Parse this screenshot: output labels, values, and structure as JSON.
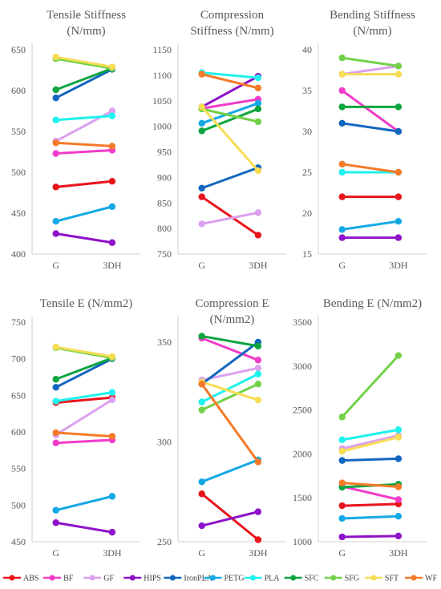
{
  "series_colors": {
    "ABS": "#e8141c",
    "BF": "#f03cc8",
    "GF": "#dca0ef",
    "HIPS": "#8e12c9",
    "IronPLA": "#1266bf",
    "PETG": "#14a9e6",
    "PLA": "#1ef2ee",
    "SFC": "#0ea540",
    "SFG": "#72d148",
    "SFT": "#f7dc54",
    "WF": "#f47a28"
  },
  "legend": [
    "ABS",
    "BF",
    "GF",
    "HIPS",
    "IronPLA",
    "PETG",
    "PLA",
    "SFC",
    "SFG",
    "SFT",
    "WF"
  ],
  "chart_data": [
    {
      "type": "line",
      "title": [
        "Tensile Stiffness",
        "(N/mm)"
      ],
      "categories": [
        "G",
        "3DH"
      ],
      "ylim": [
        400,
        650
      ],
      "yticks": [
        "400",
        "450",
        "500",
        "550",
        "600",
        "650"
      ],
      "grid": false,
      "series": [
        {
          "name": "ABS",
          "values": [
            482,
            489
          ]
        },
        {
          "name": "BF",
          "values": [
            523,
            527
          ]
        },
        {
          "name": "GF",
          "values": [
            538,
            575
          ]
        },
        {
          "name": "HIPS",
          "values": [
            425,
            414
          ]
        },
        {
          "name": "IronPLA",
          "values": [
            591,
            626
          ]
        },
        {
          "name": "PETG",
          "values": [
            440,
            458
          ]
        },
        {
          "name": "PLA",
          "values": [
            564,
            569
          ]
        },
        {
          "name": "SFC",
          "values": [
            601,
            627
          ]
        },
        {
          "name": "SFG",
          "values": [
            639,
            627
          ]
        },
        {
          "name": "SFT",
          "values": [
            641,
            629
          ]
        },
        {
          "name": "WF",
          "values": [
            536,
            532
          ]
        }
      ]
    },
    {
      "type": "line",
      "title": [
        "Compression",
        "Stiffness (N/mm)"
      ],
      "categories": [
        "G",
        "3DH"
      ],
      "ylim": [
        750,
        1150
      ],
      "yticks": [
        "750",
        "800",
        "850",
        "900",
        "950",
        "1000",
        "1050",
        "1100",
        "1150"
      ],
      "grid": false,
      "series": [
        {
          "name": "ABS",
          "values": [
            862,
            787
          ]
        },
        {
          "name": "BF",
          "values": [
            1035,
            1053
          ]
        },
        {
          "name": "GF",
          "values": [
            809,
            831
          ]
        },
        {
          "name": "HIPS",
          "values": [
            1038,
            1098
          ]
        },
        {
          "name": "IronPLA",
          "values": [
            879,
            919
          ]
        },
        {
          "name": "PETG",
          "values": [
            1006,
            1045
          ]
        },
        {
          "name": "PLA",
          "values": [
            1105,
            1095
          ]
        },
        {
          "name": "SFC",
          "values": [
            991,
            1034
          ]
        },
        {
          "name": "SFG",
          "values": [
            1034,
            1009
          ]
        },
        {
          "name": "SFT",
          "values": [
            1038,
            913
          ]
        },
        {
          "name": "WF",
          "values": [
            1102,
            1075
          ]
        }
      ]
    },
    {
      "type": "line",
      "title": [
        "Bending Stiffness",
        "(N/mm)"
      ],
      "categories": [
        "G",
        "3DH"
      ],
      "ylim": [
        15,
        40
      ],
      "yticks": [
        "15",
        "20",
        "25",
        "30",
        "35",
        "40"
      ],
      "grid": false,
      "series": [
        {
          "name": "ABS",
          "values": [
            22,
            22
          ]
        },
        {
          "name": "BF",
          "values": [
            35,
            30
          ]
        },
        {
          "name": "GF",
          "values": [
            37,
            38
          ]
        },
        {
          "name": "HIPS",
          "values": [
            17,
            17
          ]
        },
        {
          "name": "IronPLA",
          "values": [
            31,
            30
          ]
        },
        {
          "name": "PETG",
          "values": [
            18,
            19
          ]
        },
        {
          "name": "PLA",
          "values": [
            25,
            25
          ]
        },
        {
          "name": "SFC",
          "values": [
            33,
            33
          ]
        },
        {
          "name": "SFG",
          "values": [
            39,
            38
          ]
        },
        {
          "name": "SFT",
          "values": [
            37,
            37
          ]
        },
        {
          "name": "WF",
          "values": [
            26,
            25
          ]
        }
      ]
    },
    {
      "type": "line",
      "title": [
        "Tensile E (N/mm2)"
      ],
      "categories": [
        "G",
        "3DH"
      ],
      "ylim": [
        450,
        750
      ],
      "yticks": [
        "450",
        "500",
        "550",
        "600",
        "650",
        "700",
        "750"
      ],
      "grid": false,
      "series": [
        {
          "name": "ABS",
          "values": [
            640,
            647
          ]
        },
        {
          "name": "BF",
          "values": [
            585,
            589
          ]
        },
        {
          "name": "GF",
          "values": [
            596,
            644
          ]
        },
        {
          "name": "HIPS",
          "values": [
            476,
            463
          ]
        },
        {
          "name": "IronPLA",
          "values": [
            661,
            700
          ]
        },
        {
          "name": "PETG",
          "values": [
            493,
            512
          ]
        },
        {
          "name": "PLA",
          "values": [
            642,
            654
          ]
        },
        {
          "name": "SFC",
          "values": [
            672,
            701
          ]
        },
        {
          "name": "SFG",
          "values": [
            715,
            701
          ]
        },
        {
          "name": "SFT",
          "values": [
            716,
            703
          ]
        },
        {
          "name": "WF",
          "values": [
            599,
            594
          ]
        }
      ]
    },
    {
      "type": "line",
      "title": [
        "Compression E",
        "(N/mm2)"
      ],
      "categories": [
        "G",
        "3DH"
      ],
      "ylim": [
        250,
        360
      ],
      "yticks": [
        "250",
        "300",
        "350"
      ],
      "grid": false,
      "series": [
        {
          "name": "ABS",
          "values": [
            274,
            251
          ]
        },
        {
          "name": "BF",
          "values": [
            352,
            341
          ]
        },
        {
          "name": "GF",
          "values": [
            331,
            337
          ]
        },
        {
          "name": "HIPS",
          "values": [
            258,
            265
          ]
        },
        {
          "name": "IronPLA",
          "values": [
            329,
            350
          ]
        },
        {
          "name": "PETG",
          "values": [
            280,
            291
          ]
        },
        {
          "name": "PLA",
          "values": [
            320,
            334
          ]
        },
        {
          "name": "SFC",
          "values": [
            353,
            348
          ]
        },
        {
          "name": "SFG",
          "values": [
            316,
            329
          ]
        },
        {
          "name": "SFT",
          "values": [
            330,
            321
          ]
        },
        {
          "name": "WF",
          "values": [
            329,
            290
          ]
        }
      ]
    },
    {
      "type": "line",
      "title": [
        "Bending E (N/mm2)"
      ],
      "categories": [
        "G",
        "3DH"
      ],
      "ylim": [
        1000,
        3500
      ],
      "yticks": [
        "1000",
        "1500",
        "2000",
        "2500",
        "3000",
        "3500"
      ],
      "grid": false,
      "series": [
        {
          "name": "ABS",
          "values": [
            1410,
            1430
          ]
        },
        {
          "name": "BF",
          "values": [
            1630,
            1480
          ]
        },
        {
          "name": "GF",
          "values": [
            2060,
            2210
          ]
        },
        {
          "name": "HIPS",
          "values": [
            1055,
            1065
          ]
        },
        {
          "name": "IronPLA",
          "values": [
            1925,
            1945
          ]
        },
        {
          "name": "PETG",
          "values": [
            1265,
            1290
          ]
        },
        {
          "name": "PLA",
          "values": [
            2160,
            2275
          ]
        },
        {
          "name": "SFC",
          "values": [
            1620,
            1655
          ]
        },
        {
          "name": "SFG",
          "values": [
            2420,
            3120
          ]
        },
        {
          "name": "SFT",
          "values": [
            2030,
            2190
          ]
        },
        {
          "name": "WF",
          "values": [
            1670,
            1625
          ]
        }
      ]
    }
  ]
}
